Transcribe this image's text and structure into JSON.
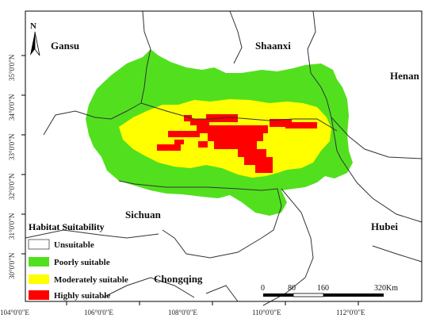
{
  "map": {
    "legend": {
      "title": "Habitat Suitability",
      "items": [
        {
          "label": "Unsuitable",
          "color": "#ffffff"
        },
        {
          "label": "Poorly suitable",
          "color": "#52e01e"
        },
        {
          "label": "Moderately suitable",
          "color": "#ffff00"
        },
        {
          "label": "Highly suitable",
          "color": "#ff0000"
        }
      ]
    },
    "regions": [
      "Gansu",
      "Shaanxi",
      "Henan",
      "Sichuan",
      "Hubei",
      "Chongqing"
    ],
    "north_arrow": "N",
    "scale_bar": {
      "ticks": [
        "0",
        "80",
        "160",
        "320Km"
      ]
    },
    "lon_ticks": [
      "104°0'0\"E",
      "106°0'0\"E",
      "108°0'0\"E",
      "110°0'0\"E",
      "112°0'0\"E"
    ],
    "lat_ticks": [
      "35°0'0\"N",
      "34°0'0\"N",
      "33°0'0\"N",
      "32°0'0\"N",
      "31°0'0\"N",
      "30°0'0\"N"
    ]
  }
}
